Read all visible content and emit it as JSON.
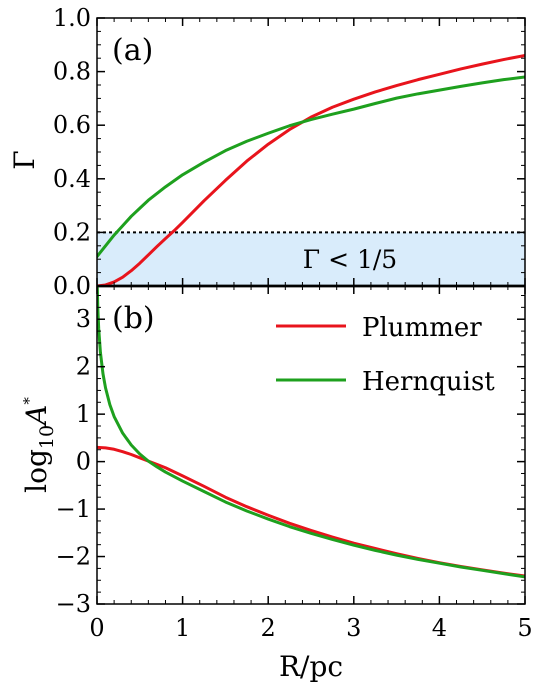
{
  "chart_data": [
    {
      "type": "line",
      "panel_label": "(a)",
      "xlabel": "R/pc",
      "ylabel": "Γ",
      "xlim": [
        0,
        5
      ],
      "ylim": [
        0,
        1.0
      ],
      "x_ticks": [
        "0",
        "1",
        "2",
        "3",
        "4",
        "5"
      ],
      "y_ticks": [
        "0.0",
        "0.2",
        "0.4",
        "0.6",
        "0.8",
        "1.0"
      ],
      "threshold": {
        "value": 0.2,
        "style": "dotted",
        "region_label": "Γ < 1/5",
        "fill_color": "#d9ecfb"
      },
      "series": [
        {
          "name": "Plummer",
          "color": "#e8141c",
          "x": [
            0,
            0.1,
            0.2,
            0.3,
            0.4,
            0.5,
            0.6,
            0.7,
            0.8,
            0.9,
            1.0,
            1.25,
            1.5,
            1.75,
            2.0,
            2.25,
            2.5,
            2.75,
            3.0,
            3.25,
            3.5,
            3.75,
            4.0,
            4.25,
            4.5,
            4.75,
            5.0
          ],
          "y": [
            0,
            0.004,
            0.015,
            0.033,
            0.057,
            0.085,
            0.116,
            0.147,
            0.177,
            0.206,
            0.237,
            0.318,
            0.394,
            0.466,
            0.529,
            0.584,
            0.63,
            0.667,
            0.697,
            0.724,
            0.748,
            0.77,
            0.79,
            0.81,
            0.828,
            0.845,
            0.86
          ]
        },
        {
          "name": "Hernquist",
          "color": "#1ea01e",
          "x": [
            0,
            0.1,
            0.2,
            0.3,
            0.4,
            0.5,
            0.6,
            0.8,
            1.0,
            1.25,
            1.5,
            1.75,
            2.0,
            2.25,
            2.5,
            2.75,
            3.0,
            3.25,
            3.5,
            3.75,
            4.0,
            4.25,
            4.5,
            4.75,
            5.0
          ],
          "y": [
            0.11,
            0.15,
            0.19,
            0.225,
            0.26,
            0.29,
            0.32,
            0.37,
            0.415,
            0.462,
            0.505,
            0.54,
            0.57,
            0.598,
            0.621,
            0.641,
            0.66,
            0.681,
            0.701,
            0.717,
            0.731,
            0.745,
            0.758,
            0.77,
            0.78
          ]
        }
      ]
    },
    {
      "type": "line",
      "panel_label": "(b)",
      "xlabel": "R/pc",
      "ylabel_main": "log",
      "ylabel_sub": "10",
      "ylabel_var": "A",
      "ylabel_sup": "*",
      "xlim": [
        0,
        5
      ],
      "ylim": [
        -3,
        3.7
      ],
      "x_ticks": [
        "0",
        "1",
        "2",
        "3",
        "4",
        "5"
      ],
      "y_ticks": [
        "−3",
        "−2",
        "−1",
        "0",
        "1",
        "2",
        "3"
      ],
      "legend_position": "top-right",
      "series": [
        {
          "name": "Plummer",
          "color": "#e8141c",
          "x": [
            0,
            0.1,
            0.2,
            0.3,
            0.4,
            0.5,
            0.6,
            0.7,
            0.8,
            1.0,
            1.25,
            1.5,
            1.75,
            2.0,
            2.25,
            2.5,
            2.75,
            3.0,
            3.25,
            3.5,
            3.75,
            4.0,
            4.25,
            4.5,
            4.75,
            5.0
          ],
          "y": [
            0.3,
            0.29,
            0.26,
            0.21,
            0.15,
            0.08,
            0.01,
            -0.06,
            -0.13,
            -0.3,
            -0.52,
            -0.75,
            -0.95,
            -1.13,
            -1.3,
            -1.45,
            -1.59,
            -1.72,
            -1.83,
            -1.94,
            -2.04,
            -2.13,
            -2.21,
            -2.28,
            -2.35,
            -2.41
          ]
        },
        {
          "name": "Hernquist",
          "color": "#1ea01e",
          "x": [
            0.003,
            0.01,
            0.02,
            0.04,
            0.07,
            0.1,
            0.15,
            0.2,
            0.3,
            0.4,
            0.5,
            0.6,
            0.7,
            0.8,
            1.0,
            1.25,
            1.5,
            1.75,
            2.0,
            2.25,
            2.5,
            2.75,
            3.0,
            3.25,
            3.5,
            3.75,
            4.0,
            4.25,
            4.5,
            4.75,
            5.0
          ],
          "y": [
            3.7,
            3.2,
            2.8,
            2.3,
            1.85,
            1.55,
            1.2,
            0.95,
            0.6,
            0.35,
            0.16,
            0.01,
            -0.11,
            -0.22,
            -0.41,
            -0.63,
            -0.85,
            -1.04,
            -1.21,
            -1.37,
            -1.51,
            -1.64,
            -1.76,
            -1.87,
            -1.97,
            -2.06,
            -2.14,
            -2.22,
            -2.29,
            -2.36,
            -2.43
          ]
        }
      ]
    }
  ]
}
